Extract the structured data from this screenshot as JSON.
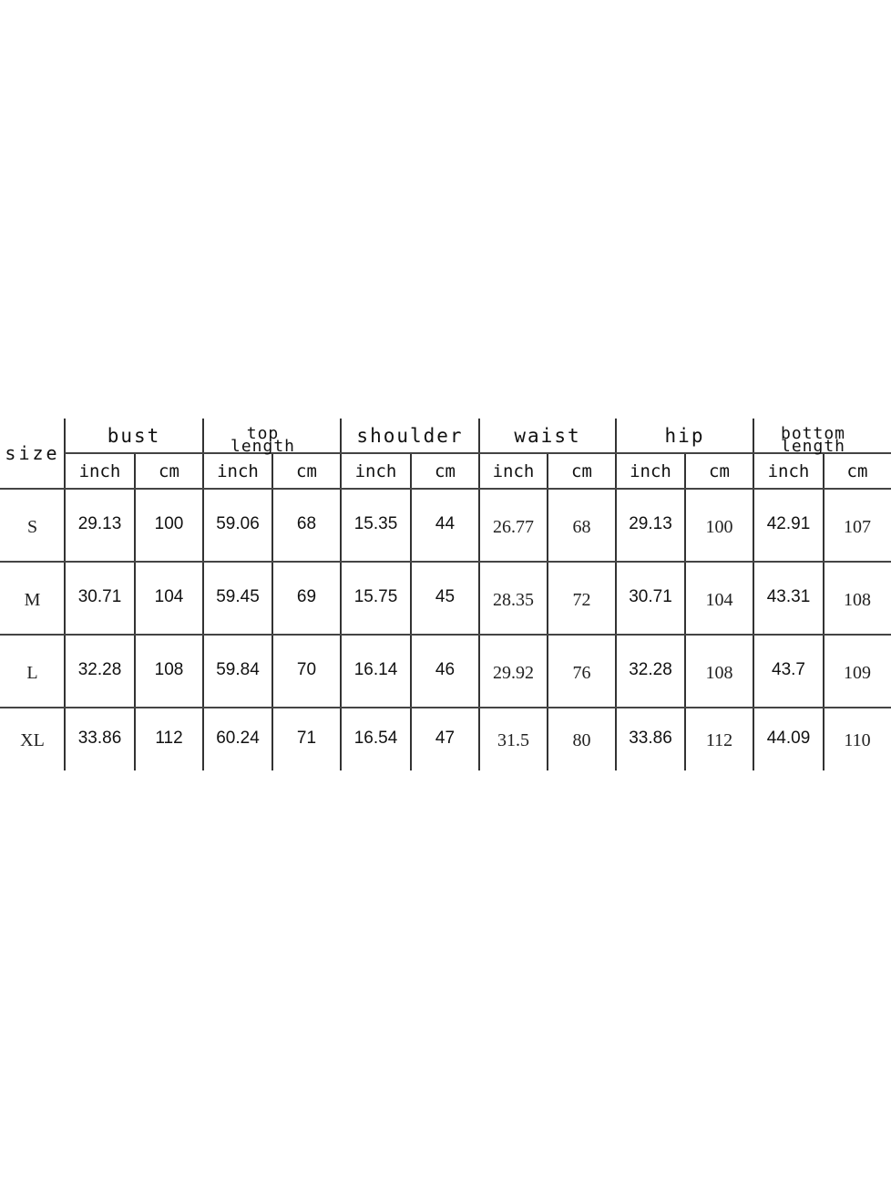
{
  "size_chart": {
    "size_label": "size",
    "groups": [
      "bust",
      "top length",
      "shoulder",
      "waist",
      "hip",
      "bottom length"
    ],
    "units": [
      "inch",
      "cm"
    ],
    "rows": [
      {
        "size": "S",
        "values": [
          "29.13",
          "100",
          "59.06",
          "68",
          "15.35",
          "44",
          "26.77",
          "68",
          "29.13",
          "100",
          "42.91",
          "107"
        ]
      },
      {
        "size": "M",
        "values": [
          "30.71",
          "104",
          "59.45",
          "69",
          "15.75",
          "45",
          "28.35",
          "72",
          "30.71",
          "104",
          "43.31",
          "108"
        ]
      },
      {
        "size": "L",
        "values": [
          "32.28",
          "108",
          "59.84",
          "70",
          "16.14",
          "46",
          "29.92",
          "76",
          "32.28",
          "108",
          "43.7",
          "109"
        ]
      },
      {
        "size": "XL",
        "values": [
          "33.86",
          "112",
          "60.24",
          "71",
          "16.54",
          "47",
          "31.5",
          "80",
          "33.86",
          "112",
          "44.09",
          "110"
        ]
      }
    ]
  }
}
